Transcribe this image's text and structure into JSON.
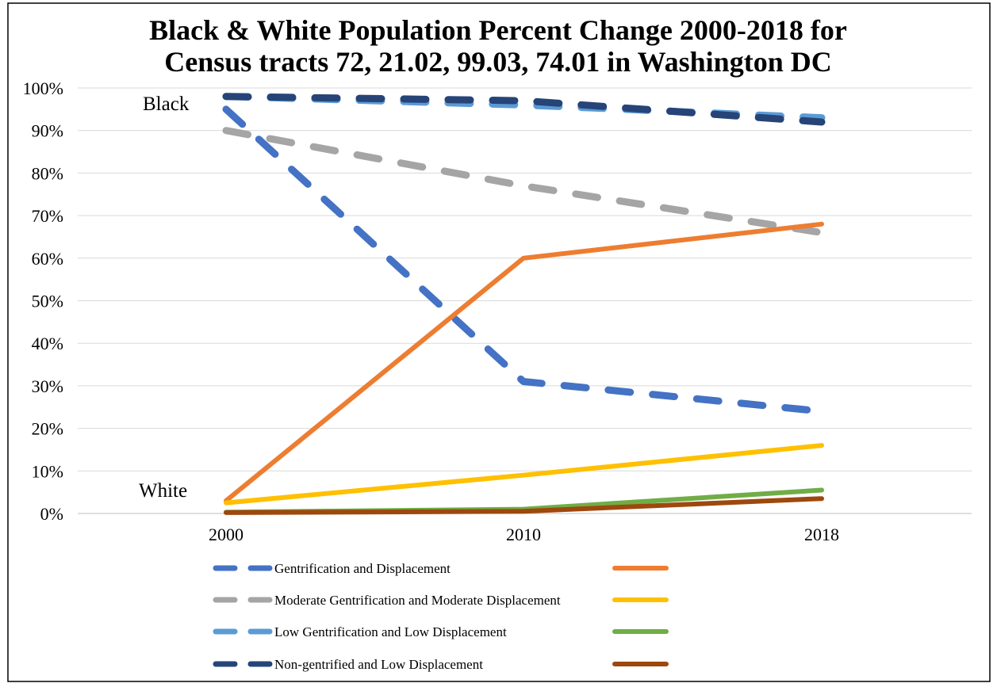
{
  "chart_data": {
    "type": "line",
    "title_lines": [
      "Black & White Population Percent Change 2000-2018 for",
      "Census tracts 72, 21.02, 99.03, 74.01 in Washington DC"
    ],
    "xlabel": "",
    "ylabel": "",
    "x": [
      "2000",
      "2010",
      "2018"
    ],
    "ylim": [
      0,
      100
    ],
    "y_ticks": [
      "0%",
      "10%",
      "20%",
      "30%",
      "40%",
      "50%",
      "60%",
      "70%",
      "80%",
      "90%",
      "100%"
    ],
    "grid": true,
    "legend_position": "bottom",
    "annotations": [
      {
        "text": "Black",
        "near": "top-left"
      },
      {
        "text": "White",
        "near": "bottom-left"
      }
    ],
    "series": [
      {
        "name": "Gentrification and Displacement",
        "group": "Black",
        "style": "dashed",
        "color": "#4472C4",
        "values": [
          95,
          31,
          24
        ]
      },
      {
        "name": "Moderate Gentrification and Moderate Displacement",
        "group": "Black",
        "style": "dashed",
        "color": "#A5A5A5",
        "values": [
          90,
          77,
          66
        ]
      },
      {
        "name": "Low Gentrification and Low Displacement",
        "group": "Black",
        "style": "dashed",
        "color": "#5B9BD5",
        "values": [
          98,
          96,
          93
        ]
      },
      {
        "name": "Non-gentrified and Low Displacement",
        "group": "Black",
        "style": "dashed",
        "color": "#264478",
        "values": [
          98,
          97,
          92
        ]
      },
      {
        "name": "",
        "group": "White",
        "style": "solid",
        "color": "#ED7D31",
        "values": [
          3,
          60,
          68
        ]
      },
      {
        "name": "",
        "group": "White",
        "style": "solid",
        "color": "#FFC000",
        "values": [
          2.5,
          9,
          16
        ]
      },
      {
        "name": "",
        "group": "White",
        "style": "solid",
        "color": "#70AD47",
        "values": [
          0.3,
          1,
          5.5
        ]
      },
      {
        "name": "",
        "group": "White",
        "style": "solid",
        "color": "#9E480E",
        "values": [
          0.2,
          0.5,
          3.5
        ]
      }
    ]
  }
}
